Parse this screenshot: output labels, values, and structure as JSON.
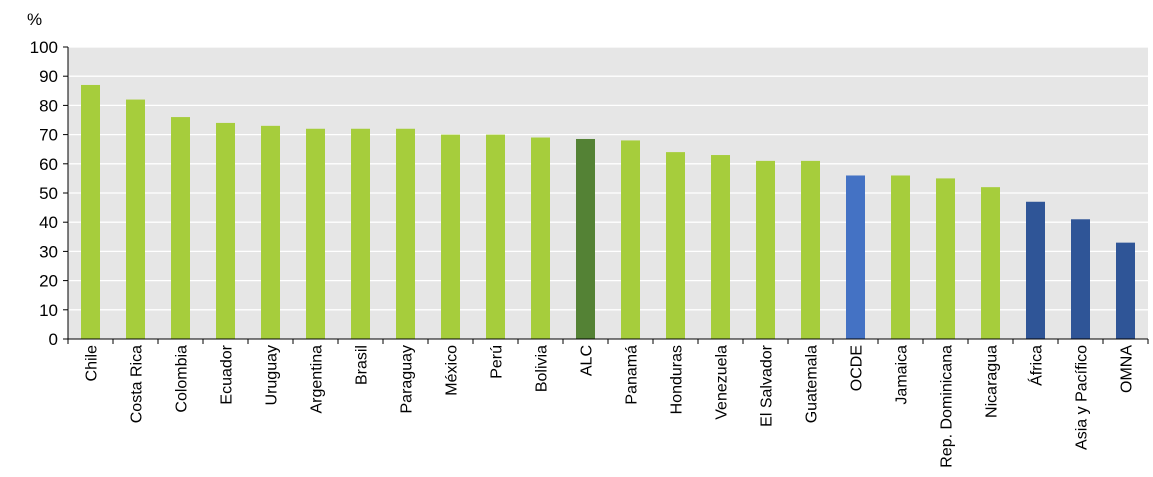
{
  "chart_data": {
    "type": "bar",
    "ylabel": "%",
    "ylim": [
      0,
      100
    ],
    "yticks": [
      0,
      10,
      20,
      30,
      40,
      50,
      60,
      70,
      80,
      90,
      100
    ],
    "grid": true,
    "categories": [
      "Chile",
      "Costa Rica",
      "Colombia",
      "Ecuador",
      "Uruguay",
      "Argentina",
      "Brasil",
      "Paraguay",
      "México",
      "Perú",
      "Bolivia",
      "ALC",
      "Panamá",
      "Honduras",
      "Venezuela",
      "El Salvador",
      "Guatemala",
      "OCDE",
      "Jamaica",
      "Rep. Dominicana",
      "Nicaragua",
      "África",
      "Asia y Pacífico",
      "OMNA"
    ],
    "values": [
      87,
      82,
      76,
      74,
      73,
      72,
      72,
      72,
      70,
      70,
      69,
      68.5,
      68,
      64,
      63,
      61,
      61,
      56,
      56,
      55,
      52,
      47,
      41,
      33
    ],
    "groups": [
      "country",
      "country",
      "country",
      "country",
      "country",
      "country",
      "country",
      "country",
      "country",
      "country",
      "country",
      "alc",
      "country",
      "country",
      "country",
      "country",
      "country",
      "ocde",
      "country",
      "country",
      "country",
      "region",
      "region",
      "region"
    ],
    "colors": {
      "country": "#a6cd3c",
      "alc": "#548235",
      "ocde": "#4472c4",
      "region": "#2f5597",
      "plot_background": "#e6e6e6",
      "gridline": "#ffffff",
      "axis": "#000000"
    }
  }
}
